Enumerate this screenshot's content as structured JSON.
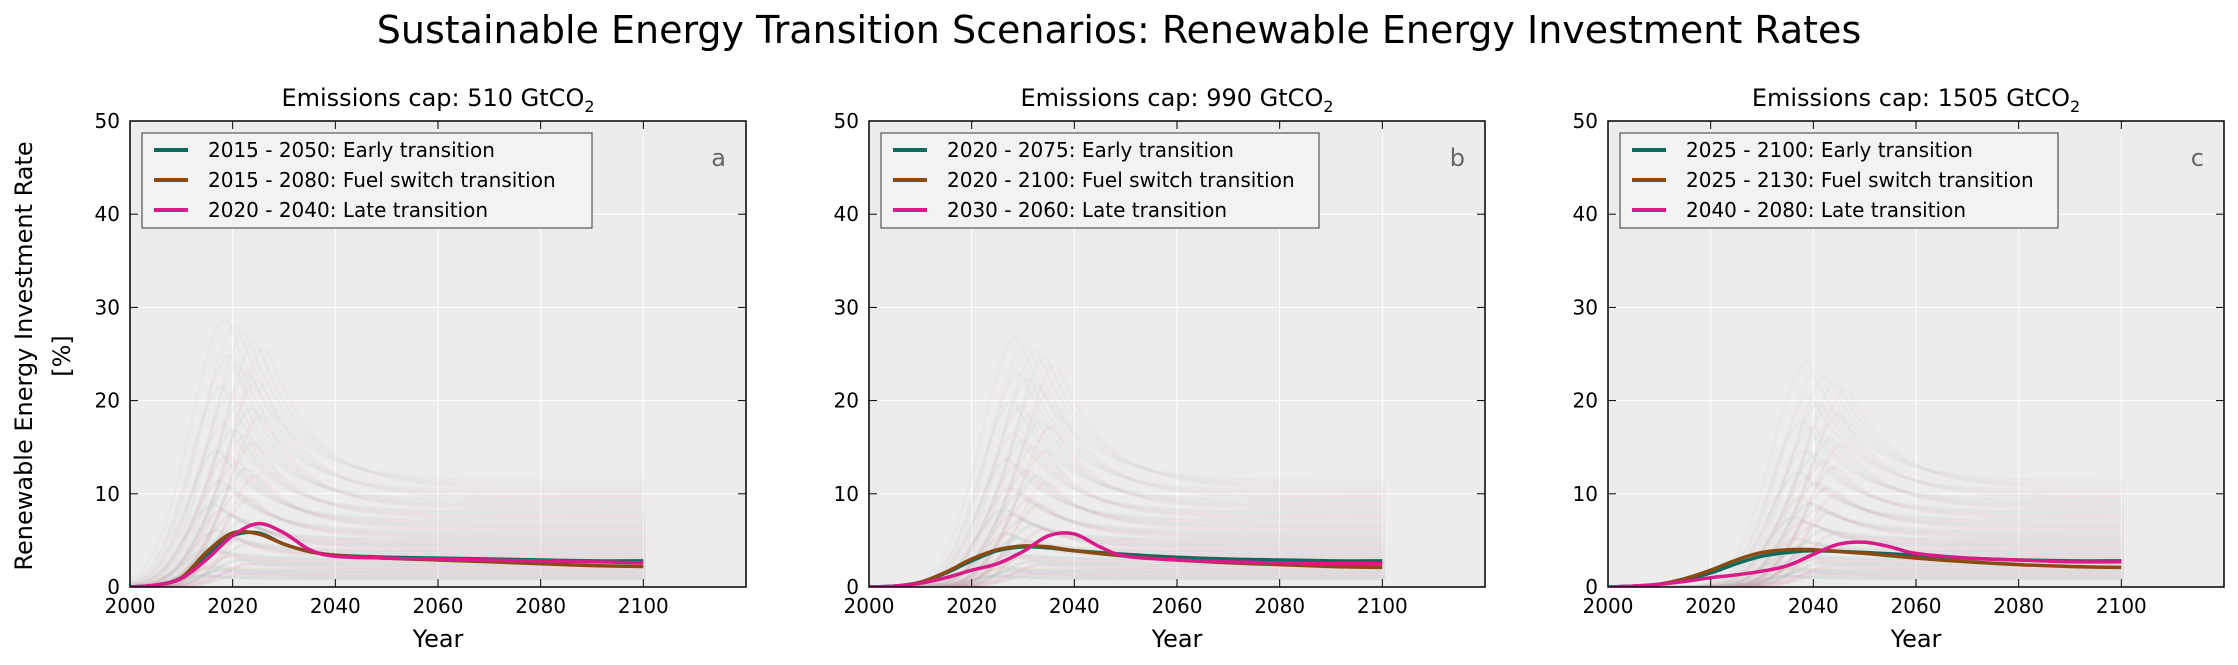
{
  "figure": {
    "title": "Sustainable Energy Transition Scenarios: Renewable Energy Investment Rates",
    "ylabel": "Renewable Energy Investment Rate",
    "ylabel_unit": "[%]"
  },
  "colors": {
    "early": "#0d6b5e",
    "fuel_switch": "#8b4a12",
    "late": "#d81b88",
    "panel_bg": "#ececec",
    "grid": "#ffffff"
  },
  "chart_data": [
    {
      "type": "line",
      "panel": "a",
      "title": "Emissions cap: 510 GtCO",
      "title_sub": "2",
      "xlabel": "Year",
      "xlim": [
        2000,
        2120
      ],
      "ylim": [
        0,
        50
      ],
      "xticks": [
        2000,
        2020,
        2040,
        2060,
        2080,
        2100
      ],
      "yticks": [
        0,
        10,
        20,
        30,
        40,
        50
      ],
      "grid": true,
      "legend_position": "top-left",
      "background_peak": 29,
      "series": [
        {
          "name": "2015 - 2050: Early transition",
          "color_key": "early",
          "x": [
            2000,
            2005,
            2010,
            2015,
            2020,
            2025,
            2030,
            2035,
            2040,
            2050,
            2060,
            2070,
            2080,
            2090,
            2100
          ],
          "y": [
            0,
            0.2,
            1.0,
            3.5,
            5.5,
            5.8,
            4.6,
            3.8,
            3.4,
            3.2,
            3.1,
            3.0,
            2.9,
            2.8,
            2.8
          ]
        },
        {
          "name": "2015 - 2080: Fuel switch transition",
          "color_key": "fuel_switch",
          "x": [
            2000,
            2005,
            2010,
            2015,
            2020,
            2025,
            2030,
            2035,
            2040,
            2050,
            2060,
            2070,
            2080,
            2090,
            2100
          ],
          "y": [
            0,
            0.2,
            1.0,
            3.8,
            5.8,
            5.7,
            4.6,
            3.8,
            3.4,
            3.1,
            2.9,
            2.7,
            2.5,
            2.3,
            2.2
          ]
        },
        {
          "name": "2020 - 2040: Late transition",
          "color_key": "late",
          "x": [
            2000,
            2005,
            2010,
            2015,
            2020,
            2025,
            2030,
            2035,
            2040,
            2050,
            2060,
            2070,
            2080,
            2090,
            2100
          ],
          "y": [
            0,
            0.2,
            0.9,
            3.0,
            5.5,
            6.8,
            5.8,
            4.0,
            3.3,
            3.1,
            3.0,
            2.9,
            2.8,
            2.7,
            2.6
          ]
        }
      ]
    },
    {
      "type": "line",
      "panel": "b",
      "title": "Emissions cap: 990 GtCO",
      "title_sub": "2",
      "xlabel": "Year",
      "xlim": [
        2000,
        2120
      ],
      "ylim": [
        0,
        50
      ],
      "xticks": [
        2000,
        2020,
        2040,
        2060,
        2080,
        2100
      ],
      "yticks": [
        0,
        10,
        20,
        30,
        40,
        50
      ],
      "grid": true,
      "legend_position": "top-left",
      "background_peak": 27,
      "series": [
        {
          "name": "2020 - 2075: Early transition",
          "color_key": "early",
          "x": [
            2000,
            2005,
            2010,
            2015,
            2020,
            2025,
            2030,
            2035,
            2040,
            2050,
            2060,
            2070,
            2080,
            2090,
            2100
          ],
          "y": [
            0,
            0.1,
            0.5,
            1.5,
            2.8,
            3.9,
            4.3,
            4.2,
            3.9,
            3.5,
            3.2,
            3.0,
            2.9,
            2.8,
            2.8
          ]
        },
        {
          "name": "2020 - 2100: Fuel switch transition",
          "color_key": "fuel_switch",
          "x": [
            2000,
            2005,
            2010,
            2015,
            2020,
            2025,
            2030,
            2035,
            2040,
            2050,
            2060,
            2070,
            2080,
            2090,
            2100
          ],
          "y": [
            0,
            0.1,
            0.5,
            1.6,
            3.0,
            4.0,
            4.4,
            4.3,
            3.9,
            3.3,
            2.9,
            2.6,
            2.4,
            2.2,
            2.1
          ]
        },
        {
          "name": "2030 - 2060: Late transition",
          "color_key": "late",
          "x": [
            2000,
            2005,
            2010,
            2015,
            2020,
            2025,
            2030,
            2035,
            2040,
            2045,
            2050,
            2060,
            2070,
            2080,
            2090,
            2100
          ],
          "y": [
            0,
            0.1,
            0.4,
            1.0,
            1.8,
            2.5,
            3.8,
            5.5,
            5.7,
            4.3,
            3.3,
            2.9,
            2.7,
            2.6,
            2.5,
            2.5
          ]
        }
      ]
    },
    {
      "type": "line",
      "panel": "c",
      "title": "Emissions cap: 1505 GtCO",
      "title_sub": "2",
      "xlabel": "Year",
      "xlim": [
        2000,
        2120
      ],
      "ylim": [
        0,
        50
      ],
      "xticks": [
        2000,
        2020,
        2040,
        2060,
        2080,
        2100
      ],
      "yticks": [
        0,
        10,
        20,
        30,
        40,
        50
      ],
      "grid": true,
      "legend_position": "top-left",
      "background_peak": 24,
      "series": [
        {
          "name": "2025 - 2100: Early transition",
          "color_key": "early",
          "x": [
            2000,
            2005,
            2010,
            2015,
            2020,
            2025,
            2030,
            2035,
            2040,
            2050,
            2060,
            2070,
            2080,
            2090,
            2100
          ],
          "y": [
            0,
            0.1,
            0.3,
            0.8,
            1.5,
            2.5,
            3.3,
            3.7,
            3.9,
            3.7,
            3.4,
            3.1,
            2.9,
            2.8,
            2.8
          ]
        },
        {
          "name": "2025 - 2130: Fuel switch transition",
          "color_key": "fuel_switch",
          "x": [
            2000,
            2005,
            2010,
            2015,
            2020,
            2025,
            2030,
            2035,
            2040,
            2050,
            2060,
            2070,
            2080,
            2090,
            2100
          ],
          "y": [
            0,
            0.1,
            0.3,
            0.9,
            1.8,
            2.9,
            3.7,
            4.0,
            4.0,
            3.6,
            3.1,
            2.7,
            2.4,
            2.2,
            2.1
          ]
        },
        {
          "name": "2040 - 2080: Late transition",
          "color_key": "late",
          "x": [
            2000,
            2005,
            2010,
            2015,
            2020,
            2025,
            2030,
            2035,
            2040,
            2045,
            2050,
            2055,
            2060,
            2070,
            2080,
            2090,
            2100
          ],
          "y": [
            0,
            0.1,
            0.3,
            0.6,
            1.0,
            1.3,
            1.7,
            2.3,
            3.5,
            4.6,
            4.8,
            4.3,
            3.6,
            3.1,
            2.9,
            2.7,
            2.7
          ]
        }
      ]
    }
  ]
}
